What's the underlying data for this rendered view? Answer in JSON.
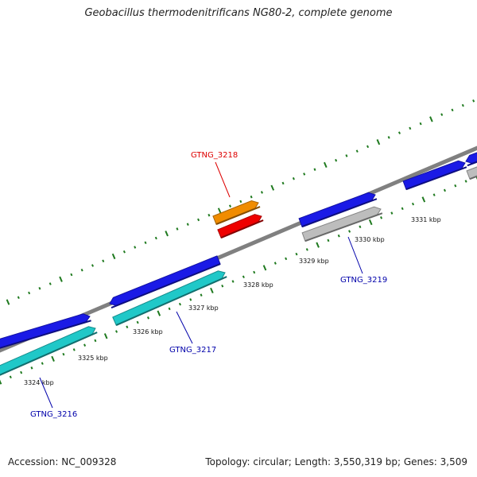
{
  "title": "Geobacillus thermodenitrificans NG80-2, complete genome",
  "footer": {
    "accession": "Accession: NC_009328",
    "summary": "Topology: circular; Length: 3,550,319 bp; Genes: 3,509"
  },
  "colors": {
    "backbone": "#808080",
    "tick": "#1f7a1f",
    "cds_blue": "#1a1ae6",
    "cds_cyan": "#20c8c8",
    "cds_grey": "#bdbdbd",
    "cds_orange": "#f08c00",
    "cds_red": "#ee0000",
    "label_blue": "#0000aa",
    "label_red": "#dd0000"
  },
  "ticks": [
    {
      "label": "3324 kbp",
      "kbp": 3324
    },
    {
      "label": "3325 kbp",
      "kbp": 3325
    },
    {
      "label": "3326 kbp",
      "kbp": 3326
    },
    {
      "label": "3327 kbp",
      "kbp": 3327
    },
    {
      "label": "3328 kbp",
      "kbp": 3328
    },
    {
      "label": "3329 kbp",
      "kbp": 3329
    },
    {
      "label": "3330 kbp",
      "kbp": 3330
    },
    {
      "label": "3331 kbp",
      "kbp": 3331
    }
  ],
  "gene_labels": [
    {
      "text": "GTNG_3216",
      "color": "label_blue"
    },
    {
      "text": "GTNG_3217",
      "color": "label_blue"
    },
    {
      "text": "GTNG_3218",
      "color": "label_red"
    },
    {
      "text": "GTNG_3219",
      "color": "label_blue"
    }
  ]
}
